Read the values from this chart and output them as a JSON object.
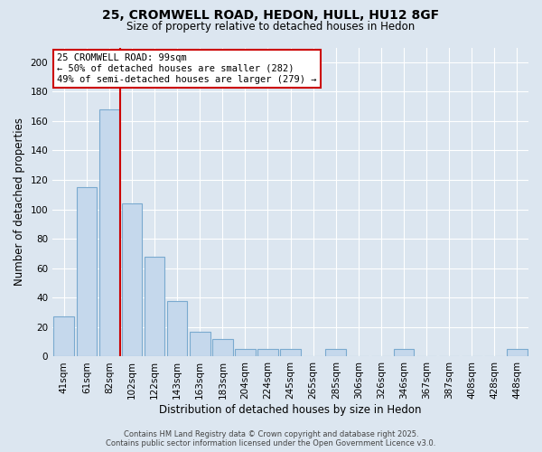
{
  "title": "25, CROMWELL ROAD, HEDON, HULL, HU12 8GF",
  "subtitle": "Size of property relative to detached houses in Hedon",
  "xlabel": "Distribution of detached houses by size in Hedon",
  "ylabel": "Number of detached properties",
  "bar_labels": [
    "41sqm",
    "61sqm",
    "82sqm",
    "102sqm",
    "122sqm",
    "143sqm",
    "163sqm",
    "183sqm",
    "204sqm",
    "224sqm",
    "245sqm",
    "265sqm",
    "285sqm",
    "306sqm",
    "326sqm",
    "346sqm",
    "367sqm",
    "387sqm",
    "408sqm",
    "428sqm",
    "448sqm"
  ],
  "bar_values": [
    27,
    115,
    168,
    104,
    68,
    38,
    17,
    12,
    5,
    5,
    5,
    0,
    5,
    0,
    0,
    5,
    0,
    0,
    0,
    0,
    5
  ],
  "bar_color": "#c5d8ec",
  "bar_edgecolor": "#7aaacf",
  "red_line_x": 2.5,
  "annotation_text": "25 CROMWELL ROAD: 99sqm\n← 50% of detached houses are smaller (282)\n49% of semi-detached houses are larger (279) →",
  "annotation_box_color": "#ffffff",
  "annotation_box_edgecolor": "#cc0000",
  "ylim": [
    0,
    210
  ],
  "yticks": [
    0,
    20,
    40,
    60,
    80,
    100,
    120,
    140,
    160,
    180,
    200
  ],
  "background_color": "#dce6f0",
  "plot_bg_color": "#dce6f0",
  "footer_line1": "Contains HM Land Registry data © Crown copyright and database right 2025.",
  "footer_line2": "Contains public sector information licensed under the Open Government Licence v3.0."
}
